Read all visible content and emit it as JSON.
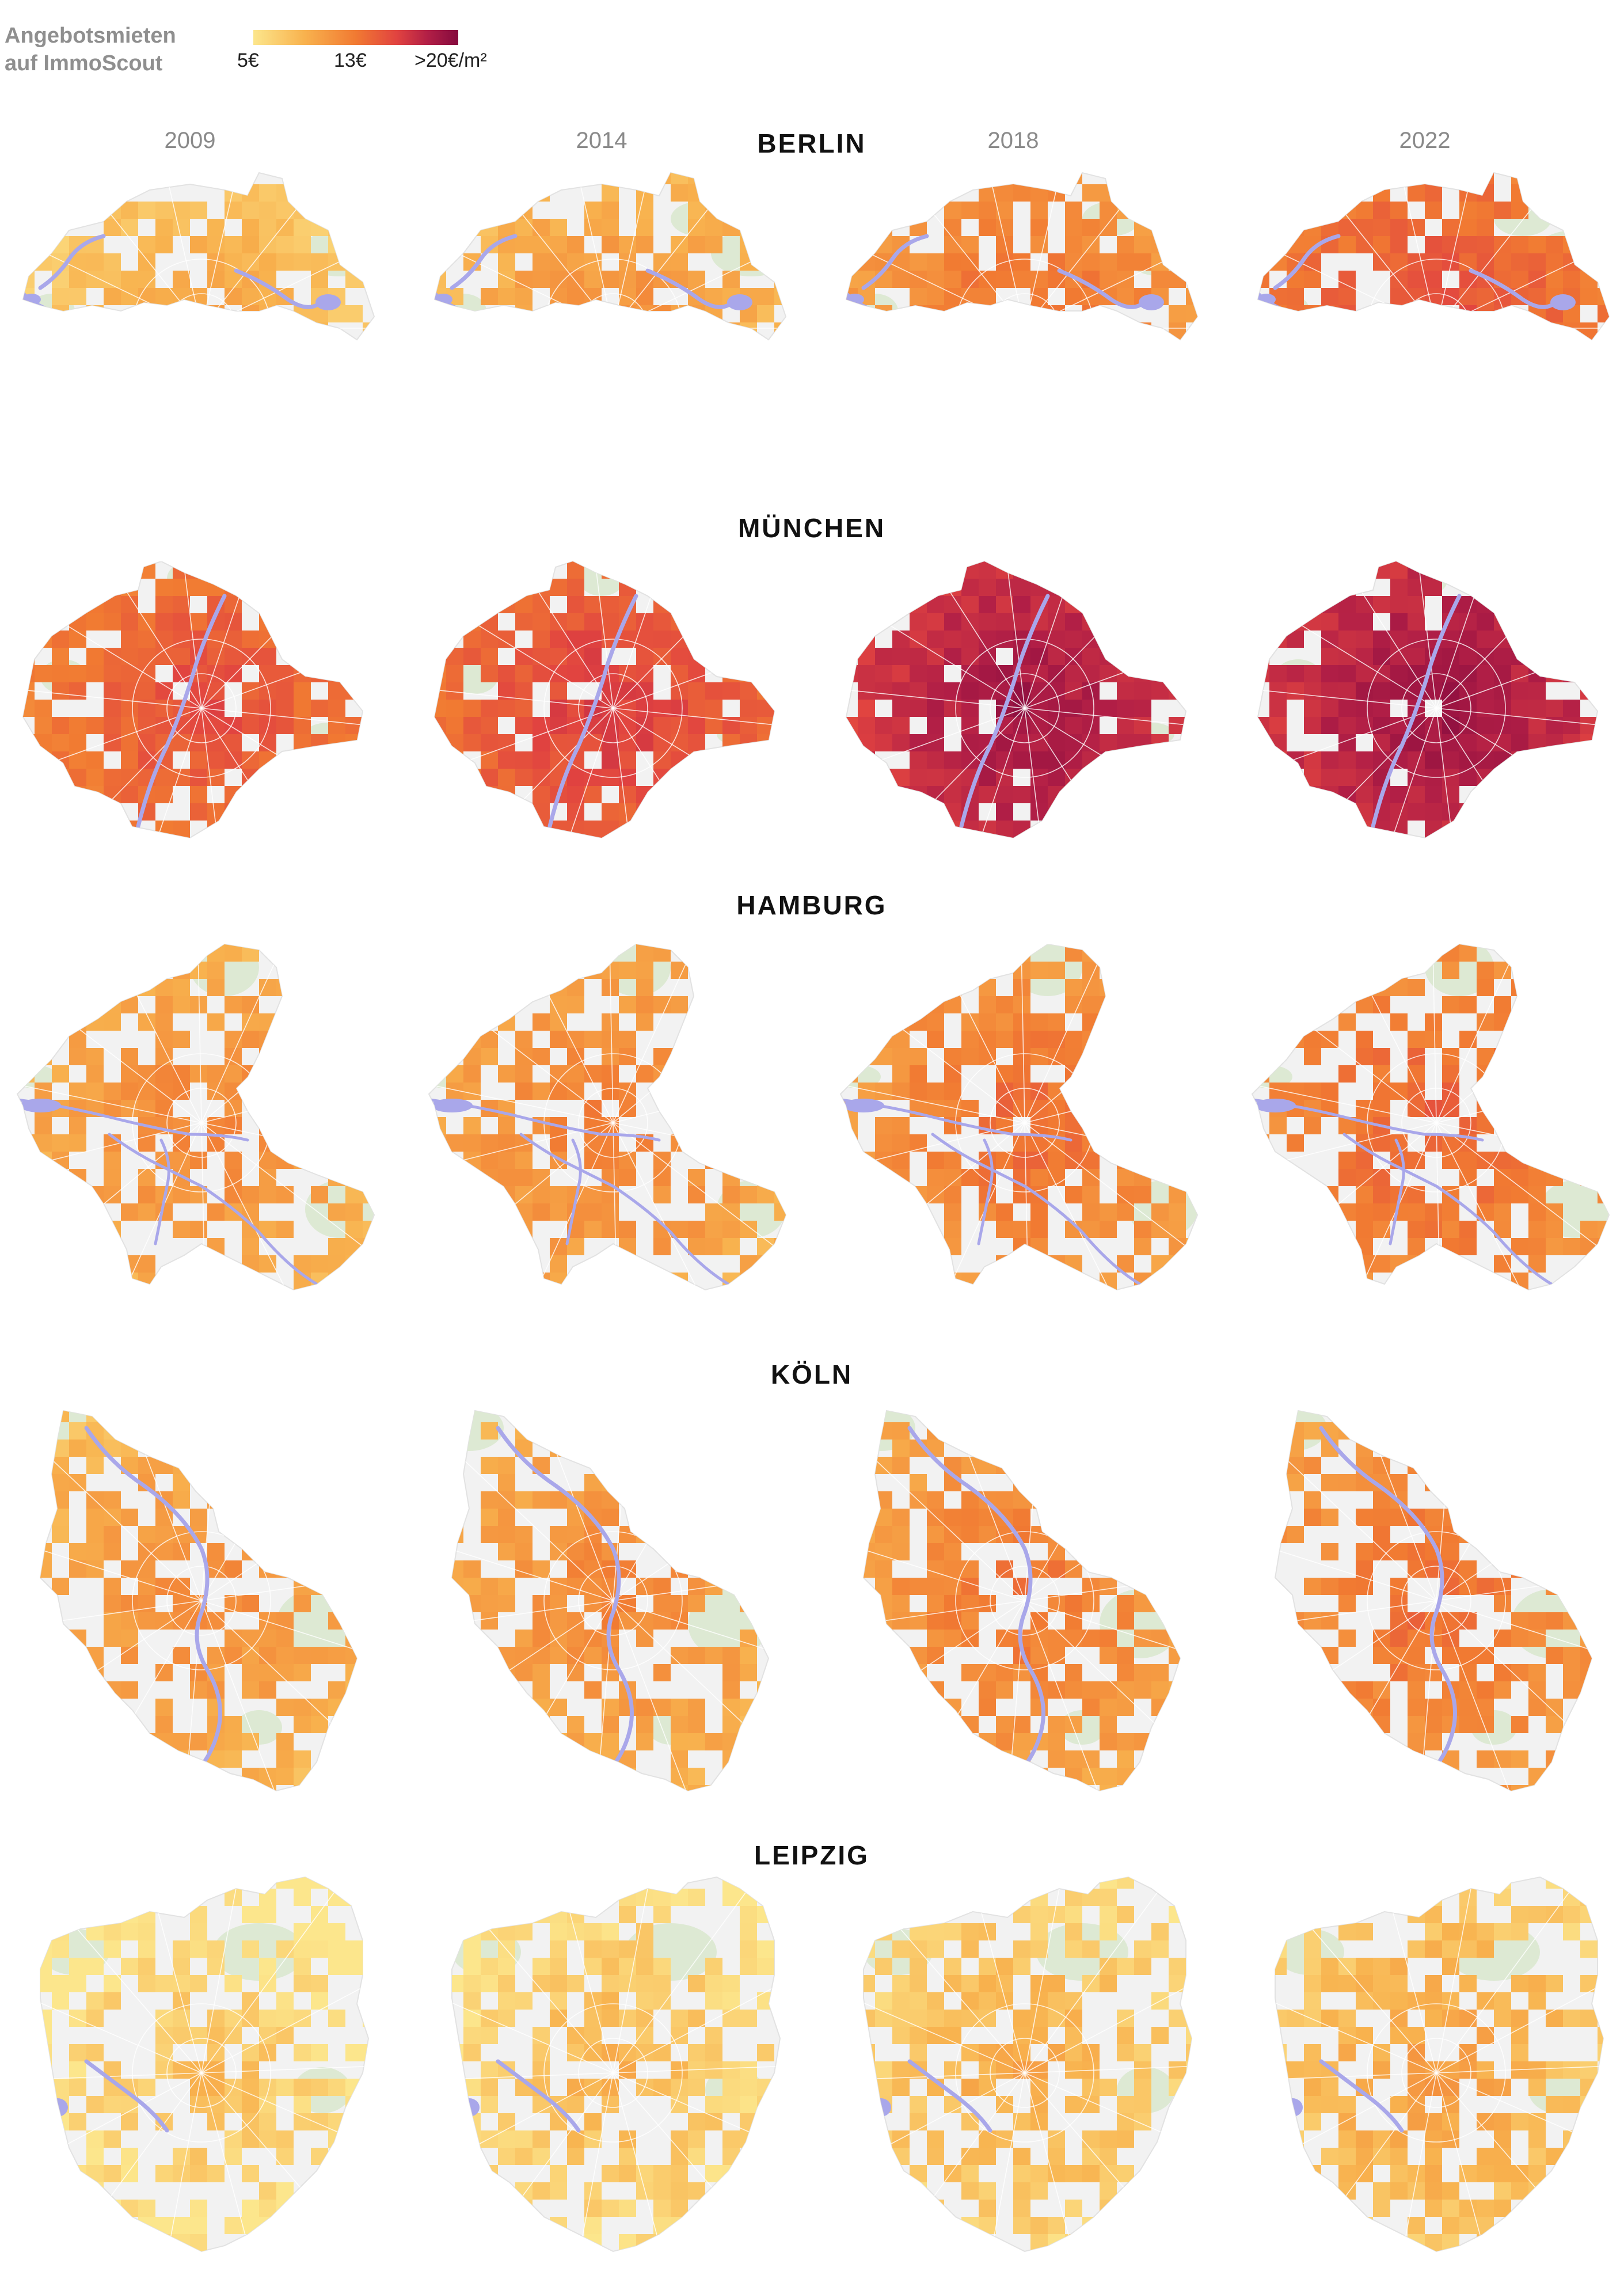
{
  "legend": {
    "title_line1": "Angebotsmieten",
    "title_line2": "auf ImmoScout",
    "tick_low": "5€",
    "tick_mid": "13€",
    "tick_high": ">20€/m²",
    "scale_min": 5,
    "scale_mid": 13,
    "scale_max": 20,
    "colors": [
      "#fce68c",
      "#f8b24e",
      "#f17a32",
      "#e14340",
      "#b21f46",
      "#850a3e"
    ]
  },
  "years": [
    "2009",
    "2014",
    "2018",
    "2022"
  ],
  "cities": [
    {
      "id": "berlin",
      "name": "BERLIN",
      "levels": [
        0.2,
        0.26,
        0.4,
        0.52
      ]
    },
    {
      "id": "muenchen",
      "name": "MÜNCHEN",
      "levels": [
        0.52,
        0.58,
        0.78,
        0.8
      ]
    },
    {
      "id": "hamburg",
      "name": "HAMBURG",
      "levels": [
        0.3,
        0.33,
        0.4,
        0.44
      ]
    },
    {
      "id": "koeln",
      "name": "KÖLN",
      "levels": [
        0.28,
        0.3,
        0.36,
        0.4
      ]
    },
    {
      "id": "leipzig",
      "name": "LEIPZIG",
      "levels": [
        0.06,
        0.1,
        0.14,
        0.18
      ]
    }
  ],
  "map_colors": {
    "water": "#a9a7ea",
    "park": "#dde9d3",
    "land": "#f2f2f2",
    "road": "#ffffff"
  }
}
